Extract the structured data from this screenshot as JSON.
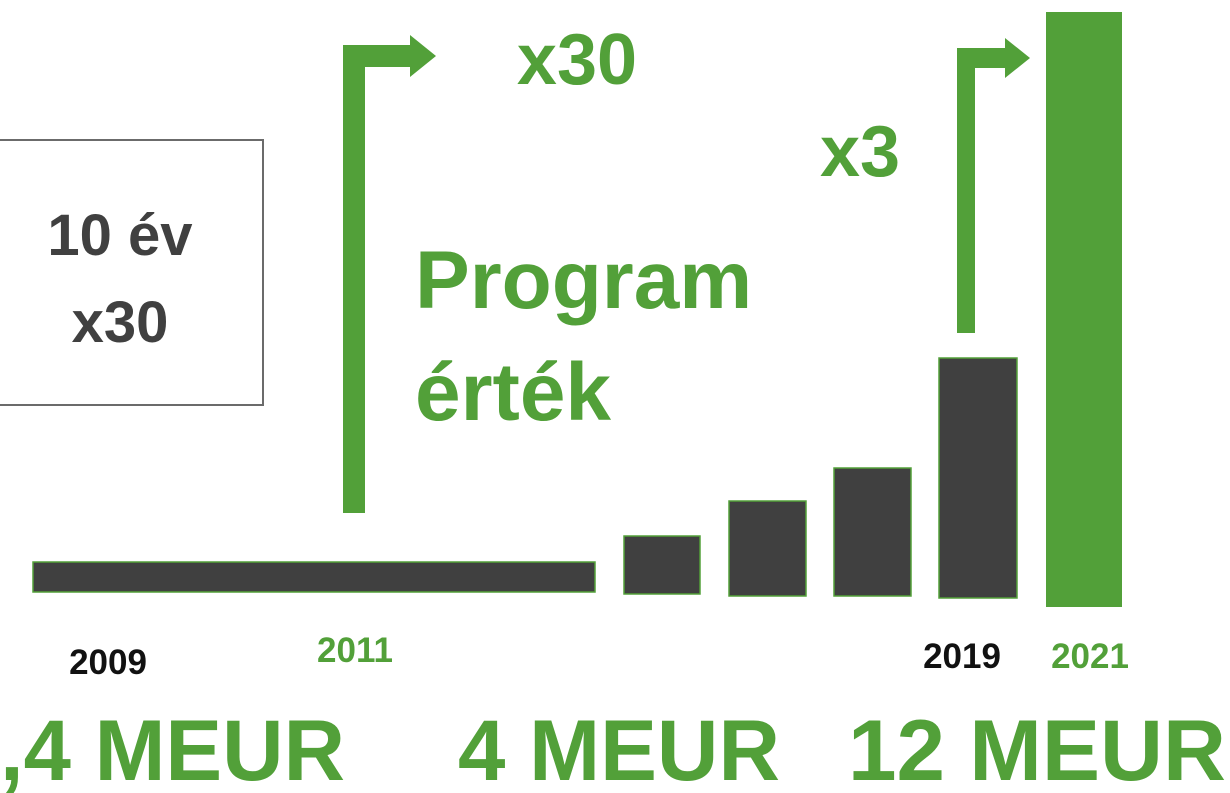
{
  "box": {
    "line1": "10 év",
    "line2": "x30"
  },
  "growth": {
    "first": "x30",
    "second": "x3"
  },
  "label": {
    "line1": "Program",
    "line2": "érték"
  },
  "years": [
    "2009",
    "2011",
    "2019",
    "2021"
  ],
  "amounts": [
    ",4 MEUR",
    "4 MEUR",
    "12 MEUR"
  ]
}
